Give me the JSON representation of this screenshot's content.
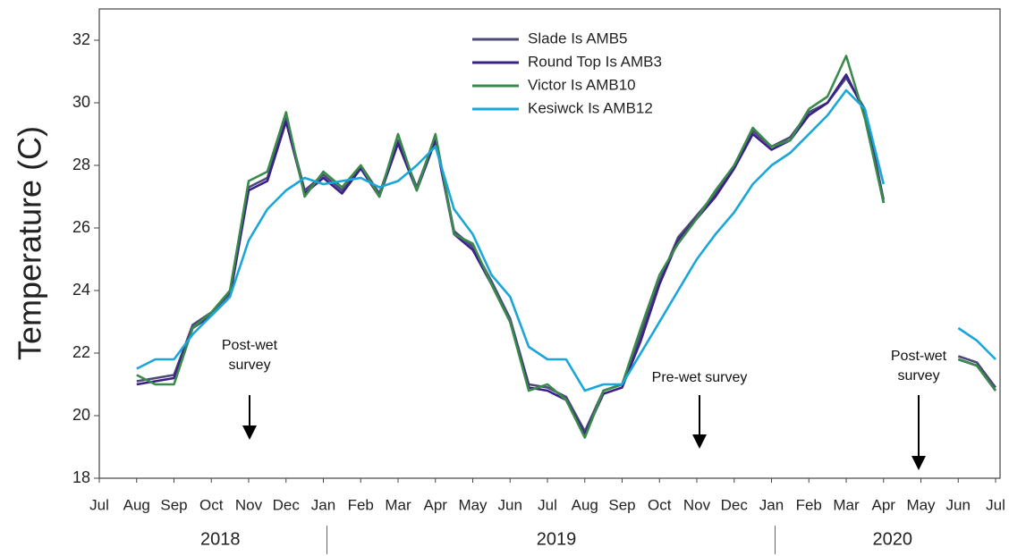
{
  "chart_data": {
    "type": "line",
    "y_label": "Temperature (C)",
    "categories": [
      "Jul",
      null,
      "Aug",
      null,
      "Sep",
      null,
      "Oct",
      null,
      "Nov",
      null,
      "Dec",
      null,
      "Jan",
      null,
      "Feb",
      null,
      "Mar",
      null,
      "Apr",
      null,
      "May",
      null,
      "Jun",
      null,
      "Jul",
      null,
      "Aug",
      null,
      "Sep",
      null,
      "Oct",
      null,
      "Nov",
      null,
      "Dec",
      null,
      "Jan",
      null,
      "Feb",
      null,
      "Mar",
      null,
      "Apr",
      null,
      "May",
      null,
      "Jun",
      null,
      "Jul"
    ],
    "year_labels": [
      "2018",
      "2019",
      "2020"
    ],
    "ylim": [
      18,
      33
    ],
    "yticks": [
      18,
      20,
      22,
      24,
      26,
      28,
      30,
      32
    ],
    "legend": "top",
    "series": [
      {
        "name": "Slade Is AMB5",
        "color": "#4b4a78",
        "values": [
          null,
          null,
          21.1,
          21.2,
          21.3,
          22.9,
          23.3,
          23.9,
          27.3,
          27.6,
          29.5,
          27.2,
          27.7,
          27.2,
          28.0,
          27.1,
          28.8,
          27.3,
          28.9,
          25.9,
          25.4,
          24.3,
          23.1,
          21.0,
          20.9,
          20.6,
          19.5,
          20.8,
          21.0,
          22.6,
          24.3,
          25.7,
          26.4,
          27.1,
          28.0,
          29.1,
          28.6,
          28.9,
          29.7,
          30.0,
          30.8,
          29.8,
          26.9,
          null,
          null,
          null,
          21.9,
          21.7,
          20.9
        ]
      },
      {
        "name": "Round Top Is AMB3",
        "color": "#3a2088",
        "values": [
          null,
          null,
          21.0,
          21.1,
          21.2,
          22.8,
          23.2,
          23.8,
          27.2,
          27.5,
          29.4,
          27.1,
          27.6,
          27.1,
          27.9,
          27.0,
          28.7,
          27.2,
          28.8,
          25.8,
          25.3,
          24.2,
          23.0,
          20.9,
          20.8,
          20.5,
          19.4,
          20.7,
          20.9,
          22.4,
          24.2,
          25.6,
          26.3,
          27.0,
          27.9,
          29.0,
          28.5,
          28.8,
          29.6,
          30.0,
          30.9,
          29.7,
          26.8,
          null,
          null,
          null,
          21.8,
          21.6,
          20.8
        ]
      },
      {
        "name": "Victor Is AMB10",
        "color": "#3a8a4c",
        "values": [
          null,
          null,
          21.3,
          21.0,
          21.0,
          22.8,
          23.3,
          24.0,
          27.5,
          27.8,
          29.7,
          27.0,
          27.8,
          27.3,
          28.0,
          27.0,
          29.0,
          27.2,
          29.0,
          25.8,
          25.5,
          24.2,
          23.0,
          20.8,
          21.0,
          20.5,
          19.3,
          20.8,
          21.0,
          22.8,
          24.5,
          25.5,
          26.3,
          27.2,
          28.0,
          29.2,
          28.6,
          28.8,
          29.8,
          30.2,
          31.5,
          29.5,
          26.8,
          null,
          null,
          null,
          21.8,
          21.6,
          20.8
        ]
      },
      {
        "name": "Kesiwck Is AMB12",
        "color": "#1ba6d9",
        "values": [
          null,
          null,
          21.5,
          21.8,
          21.8,
          22.6,
          23.2,
          23.8,
          25.6,
          26.6,
          27.2,
          27.6,
          27.4,
          27.5,
          27.6,
          27.3,
          27.5,
          28.0,
          28.6,
          26.6,
          25.8,
          24.5,
          23.8,
          22.2,
          21.8,
          21.8,
          20.8,
          21.0,
          21.0,
          22.0,
          23.0,
          24.0,
          25.0,
          25.8,
          26.5,
          27.4,
          28.0,
          28.4,
          29.0,
          29.6,
          30.4,
          29.8,
          27.4,
          null,
          null,
          null,
          22.8,
          22.4,
          21.8
        ]
      }
    ],
    "annotations": [
      "Post-wet survey",
      "Pre-wet survey",
      "Post-wet survey"
    ]
  }
}
